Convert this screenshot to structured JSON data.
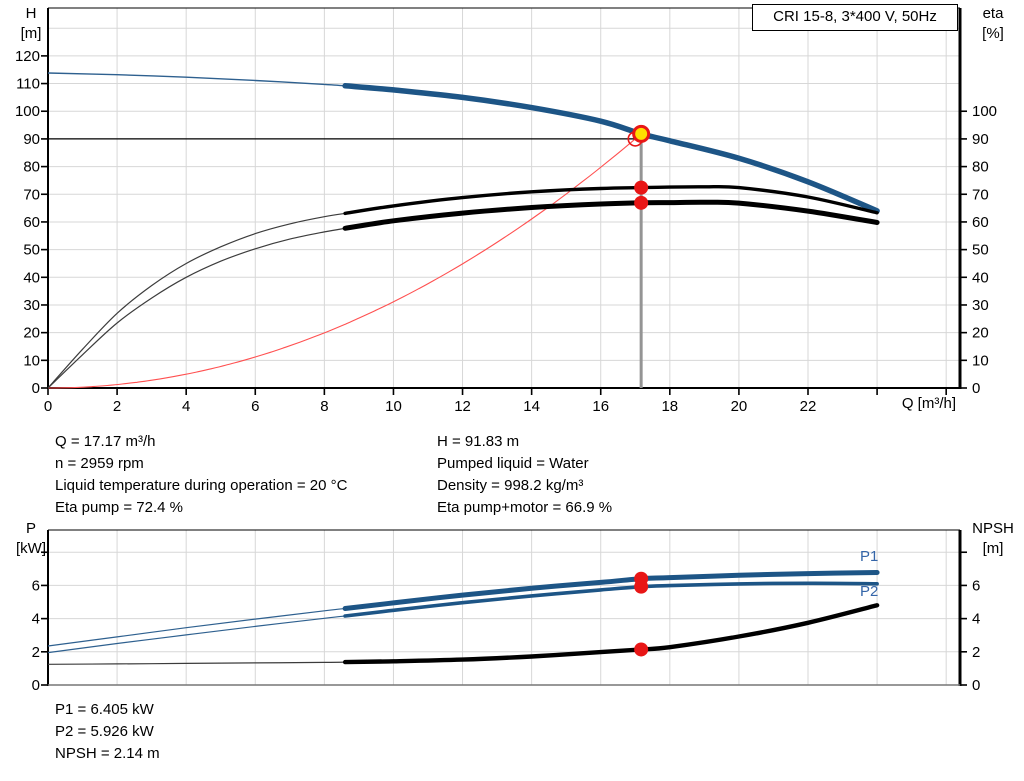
{
  "header": {
    "title": "CRI 15-8, 3*400 V, 50Hz"
  },
  "results_top": {
    "left": [
      "Q = 17.17 m³/h",
      "n = 2959 rpm",
      "Liquid temperature during operation = 20 °C",
      "Eta pump = 72.4 %"
    ],
    "right": [
      "H = 91.83 m",
      "Pumped liquid = Water",
      "Density = 998.2 kg/m³",
      "Eta pump+motor = 66.9 %"
    ]
  },
  "results_bottom": [
    "P1 = 6.405 kW",
    "P2 = 5.926 kW",
    "NPSH = 2.14 m"
  ],
  "colors": {
    "curve_blue": "#1d5586",
    "thin_blue": "#2e608f",
    "label_blue": "#3465a8",
    "black": "#000000",
    "thin_gray_black": "#3c3c3c",
    "red": "#e81616",
    "system_red": "#ff5050",
    "yellow": "#ffdf00",
    "grid": "#d7d7d7",
    "duty_line": "#949494"
  },
  "chart_data": [
    {
      "type": "line",
      "name": "performance-curves",
      "xlabel": "Q [m³/h]",
      "left_axis": {
        "label": "H",
        "unit": "[m]",
        "ticks": [
          0,
          10,
          20,
          30,
          40,
          50,
          60,
          70,
          80,
          90,
          100,
          110,
          120
        ],
        "max": 137.3
      },
      "right_axis": {
        "label": "eta",
        "unit": "[%]",
        "ticks": [
          0,
          10,
          20,
          30,
          40,
          50,
          60,
          70,
          80,
          90,
          100
        ]
      },
      "x_ticks_labeled": [
        0,
        2,
        4,
        6,
        8,
        10,
        12,
        14,
        16,
        18,
        20,
        22
      ],
      "x_ticks_unlabeled": [
        24,
        26
      ],
      "xlim": [
        0,
        26.4
      ],
      "grid_step_x": 2,
      "grid_step_y": 10,
      "allowed_range_from_q": 8.6,
      "series": [
        {
          "name": "H pump curve",
          "axis": "left",
          "color": "#1d5586",
          "q": [
            0,
            2,
            4,
            6,
            8,
            8.6,
            10,
            12,
            14,
            16,
            17.17,
            18,
            20,
            22,
            24
          ],
          "v": [
            113.8,
            113.2,
            112.3,
            111.1,
            109.7,
            109.2,
            107.7,
            105.0,
            101.3,
            96.4,
            91.83,
            89.3,
            83.0,
            74.5,
            64.0
          ]
        },
        {
          "name": "eta pump",
          "axis": "right",
          "color": "#000000",
          "q": [
            0,
            1,
            2,
            3,
            4,
            5,
            6,
            7,
            8,
            8.6,
            10,
            12,
            14,
            16,
            17.17,
            18,
            19,
            20,
            22,
            24
          ],
          "v": [
            0,
            14,
            27,
            37,
            45,
            51,
            55.8,
            59.3,
            61.9,
            63.1,
            65.8,
            68.8,
            70.9,
            72.1,
            72.4,
            72.6,
            72.7,
            72.4,
            69.0,
            63.3
          ]
        },
        {
          "name": "eta pump+motor",
          "axis": "right",
          "color": "#000000",
          "q": [
            0,
            1,
            2,
            3,
            4,
            5,
            6,
            7,
            8,
            8.6,
            10,
            12,
            14,
            16,
            17.17,
            18,
            19,
            20,
            22,
            24
          ],
          "v": [
            0,
            12,
            23.5,
            32.5,
            40,
            45.8,
            50.3,
            53.8,
            56.4,
            57.7,
            60.4,
            63.2,
            65.2,
            66.5,
            66.9,
            67.0,
            67.1,
            66.8,
            63.9,
            59.8
          ]
        }
      ],
      "system_curve": {
        "q_duty": 17.17,
        "h_duty": 91.83
      },
      "duty_point": {
        "q": 17.17,
        "h": 91.83
      },
      "requested_point": {
        "q": 17.0,
        "h": 90.0
      },
      "eta_markers": [
        {
          "q": 17.17,
          "v": 72.4
        },
        {
          "q": 17.17,
          "v": 66.9
        }
      ]
    },
    {
      "type": "line",
      "name": "power-npsh-curves",
      "left_axis": {
        "label": "P",
        "unit": "[kW]",
        "ticks": [
          0,
          2,
          4,
          6
        ],
        "ticks_unlabeled": [
          8
        ],
        "max": 9.34
      },
      "right_axis": {
        "label": "NPSH",
        "unit": "[m]",
        "ticks": [
          0,
          2,
          4,
          6
        ],
        "ticks_unlabeled": [
          8
        ]
      },
      "xlim": [
        0,
        26.4
      ],
      "grid_step_x": 2,
      "grid_step_y": 2,
      "allowed_range_from_q": 8.6,
      "series": [
        {
          "name": "P1",
          "axis": "left",
          "color": "#1d5586",
          "q": [
            0,
            2,
            4,
            6,
            8,
            8.6,
            10,
            12,
            14,
            16,
            17.17,
            18,
            20,
            22,
            24
          ],
          "v": [
            2.35,
            2.9,
            3.45,
            3.97,
            4.47,
            4.61,
            4.95,
            5.42,
            5.83,
            6.18,
            6.405,
            6.47,
            6.61,
            6.71,
            6.78
          ]
        },
        {
          "name": "P2",
          "axis": "left",
          "color": "#1d5586",
          "q": [
            0,
            2,
            4,
            6,
            8,
            8.6,
            10,
            12,
            14,
            16,
            17.17,
            18,
            20,
            22,
            24
          ],
          "v": [
            1.95,
            2.5,
            3.02,
            3.53,
            4.02,
            4.16,
            4.5,
            4.96,
            5.37,
            5.73,
            5.926,
            5.99,
            6.09,
            6.13,
            6.1
          ]
        },
        {
          "name": "NPSH",
          "axis": "right",
          "color": "#000000",
          "q": [
            0,
            2,
            4,
            6,
            8,
            8.6,
            10,
            12,
            14,
            16,
            17.17,
            18,
            20,
            22,
            24
          ],
          "v": [
            1.25,
            1.27,
            1.3,
            1.33,
            1.36,
            1.38,
            1.43,
            1.53,
            1.72,
            1.98,
            2.14,
            2.28,
            2.92,
            3.75,
            4.8
          ]
        }
      ],
      "duty_markers": [
        {
          "series": "P1",
          "q": 17.17,
          "v": 6.405
        },
        {
          "series": "P2",
          "q": 17.17,
          "v": 5.926
        },
        {
          "series": "NPSH",
          "q": 17.17,
          "v": 2.14
        }
      ]
    }
  ]
}
